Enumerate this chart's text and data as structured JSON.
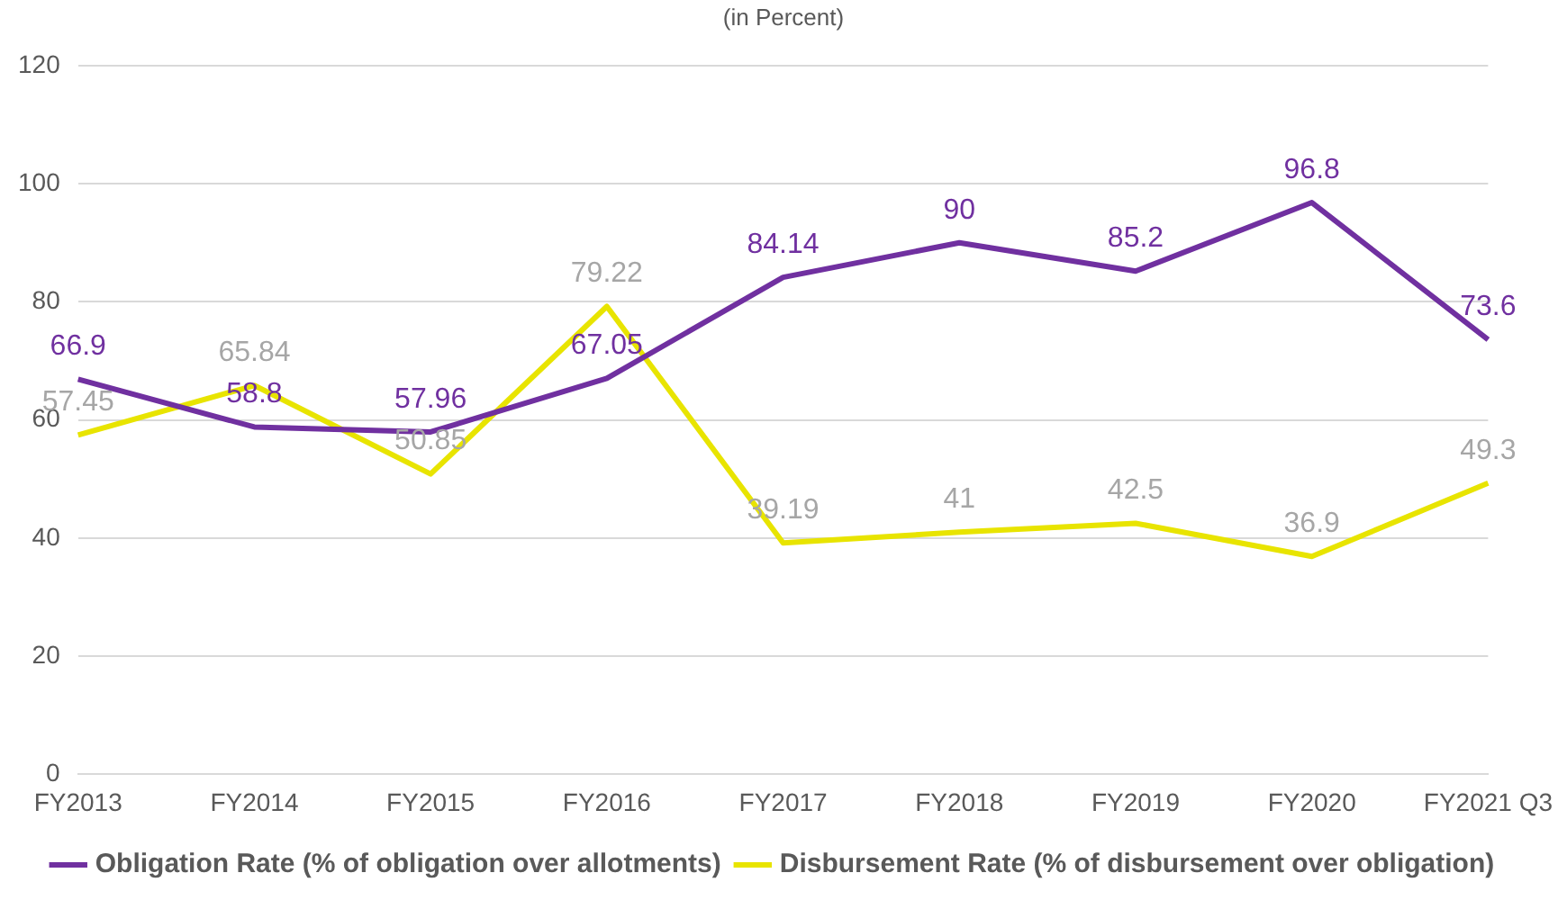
{
  "chart_data": {
    "type": "line",
    "subtitle": "(in Percent)",
    "categories": [
      "FY2013",
      "FY2014",
      "FY2015",
      "FY2016",
      "FY2017",
      "FY2018",
      "FY2019",
      "FY2020",
      "FY2021 Q3"
    ],
    "series": [
      {
        "name": "Obligation Rate (% of obligation over allotments)",
        "color": "#7030a0",
        "values": [
          66.9,
          58.8,
          57.96,
          67.05,
          84.14,
          90,
          85.2,
          96.8,
          73.6
        ]
      },
      {
        "name": "Disbursement Rate (% of disbursement over obligation)",
        "color": "#e8e400",
        "values": [
          57.45,
          65.84,
          50.85,
          79.22,
          39.19,
          41,
          42.5,
          36.9,
          49.3
        ]
      }
    ],
    "ylim": [
      0,
      120
    ],
    "yticks": [
      0,
      20,
      40,
      60,
      80,
      100,
      120
    ],
    "grid": "y",
    "legend": "bottom",
    "marker": "none",
    "line_style": "solid",
    "data_labels": true
  }
}
